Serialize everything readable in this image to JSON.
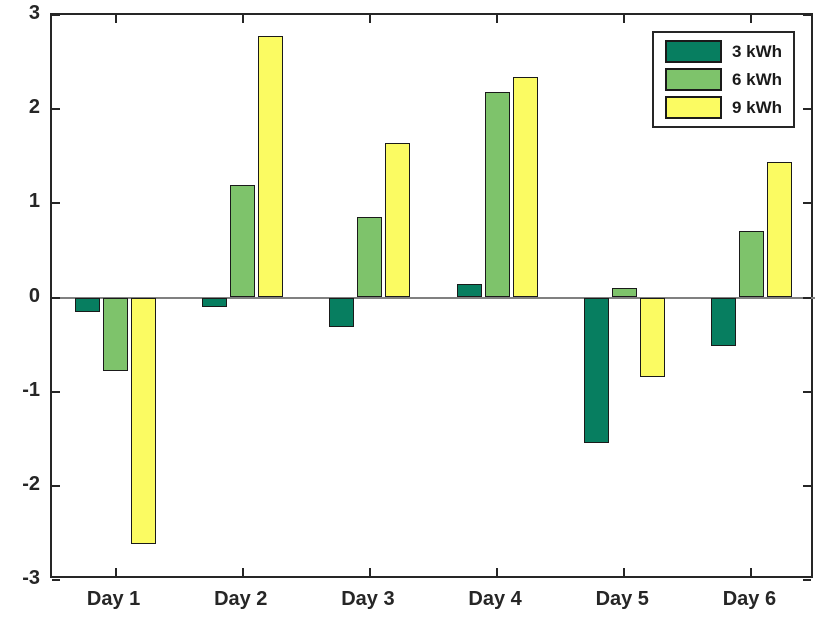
{
  "chart_data": {
    "type": "bar",
    "title": "",
    "xlabel": "",
    "ylabel": "",
    "categories": [
      "Day 1",
      "Day 2",
      "Day 3",
      "Day 4",
      "Day 5",
      "Day 6"
    ],
    "series": [
      {
        "name": "3 kWh",
        "color": "#077e60",
        "values": [
          -0.15,
          -0.1,
          -0.31,
          0.14,
          -1.55,
          -0.51
        ]
      },
      {
        "name": "6 kWh",
        "color": "#7ec36b",
        "values": [
          -0.78,
          1.19,
          0.85,
          2.18,
          0.1,
          0.71
        ]
      },
      {
        "name": "9 kWh",
        "color": "#fbfb62",
        "values": [
          -2.62,
          2.78,
          1.64,
          2.34,
          -0.84,
          1.44
        ]
      }
    ],
    "ylim": [
      -3,
      3
    ],
    "yticks": [
      -3,
      -2,
      -1,
      0,
      1,
      2,
      3
    ],
    "grid": false,
    "legend_position": "top-right",
    "axis_color": "#262626",
    "bar_edge_color": "#1a1a1a",
    "baseline_color": "#808080",
    "background_color": "#ffffff"
  }
}
